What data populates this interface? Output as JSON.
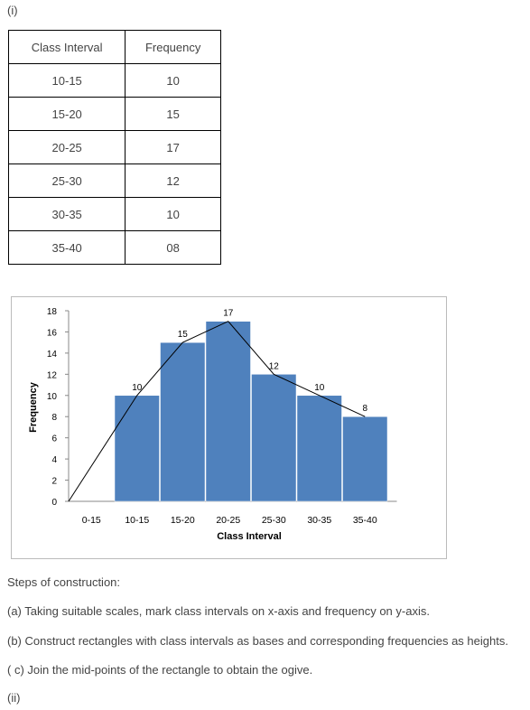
{
  "labels": {
    "part_i": "(i)",
    "part_ii": "(ii)"
  },
  "table": {
    "headers": [
      "Class Interval",
      "Frequency"
    ],
    "rows": [
      [
        "10-15",
        "10"
      ],
      [
        "15-20",
        "15"
      ],
      [
        "20-25",
        "17"
      ],
      [
        "25-30",
        "12"
      ],
      [
        "30-35",
        "10"
      ],
      [
        "35-40",
        "08"
      ]
    ]
  },
  "chart_data": {
    "type": "bar",
    "categories": [
      "0-15",
      "10-15",
      "15-20",
      "20-25",
      "25-30",
      "30-35",
      "35-40"
    ],
    "series": [
      {
        "values": [
          0,
          10,
          15,
          17,
          12,
          10,
          8
        ]
      }
    ],
    "line": [
      0,
      10,
      15,
      17,
      12,
      10,
      8
    ],
    "data_labels": [
      "",
      "10",
      "15",
      "17",
      "12",
      "10",
      "8"
    ],
    "xlabel": "Class Interval",
    "ylabel": "Frequency",
    "ylim": [
      0,
      18
    ],
    "yticks": [
      0,
      2,
      4,
      6,
      8,
      10,
      12,
      14,
      16,
      18
    ],
    "bar_color": "#4f81bd",
    "grid": false
  },
  "steps": {
    "title": "Steps of construction:",
    "a": "(a) Taking suitable scales, mark class intervals on x-axis and frequency on y-axis.",
    "b": "(b) Construct rectangles with class intervals as bases and corresponding frequencies as heights.",
    "c": "( c) Join the mid-points of the rectangle to obtain the ogive."
  }
}
